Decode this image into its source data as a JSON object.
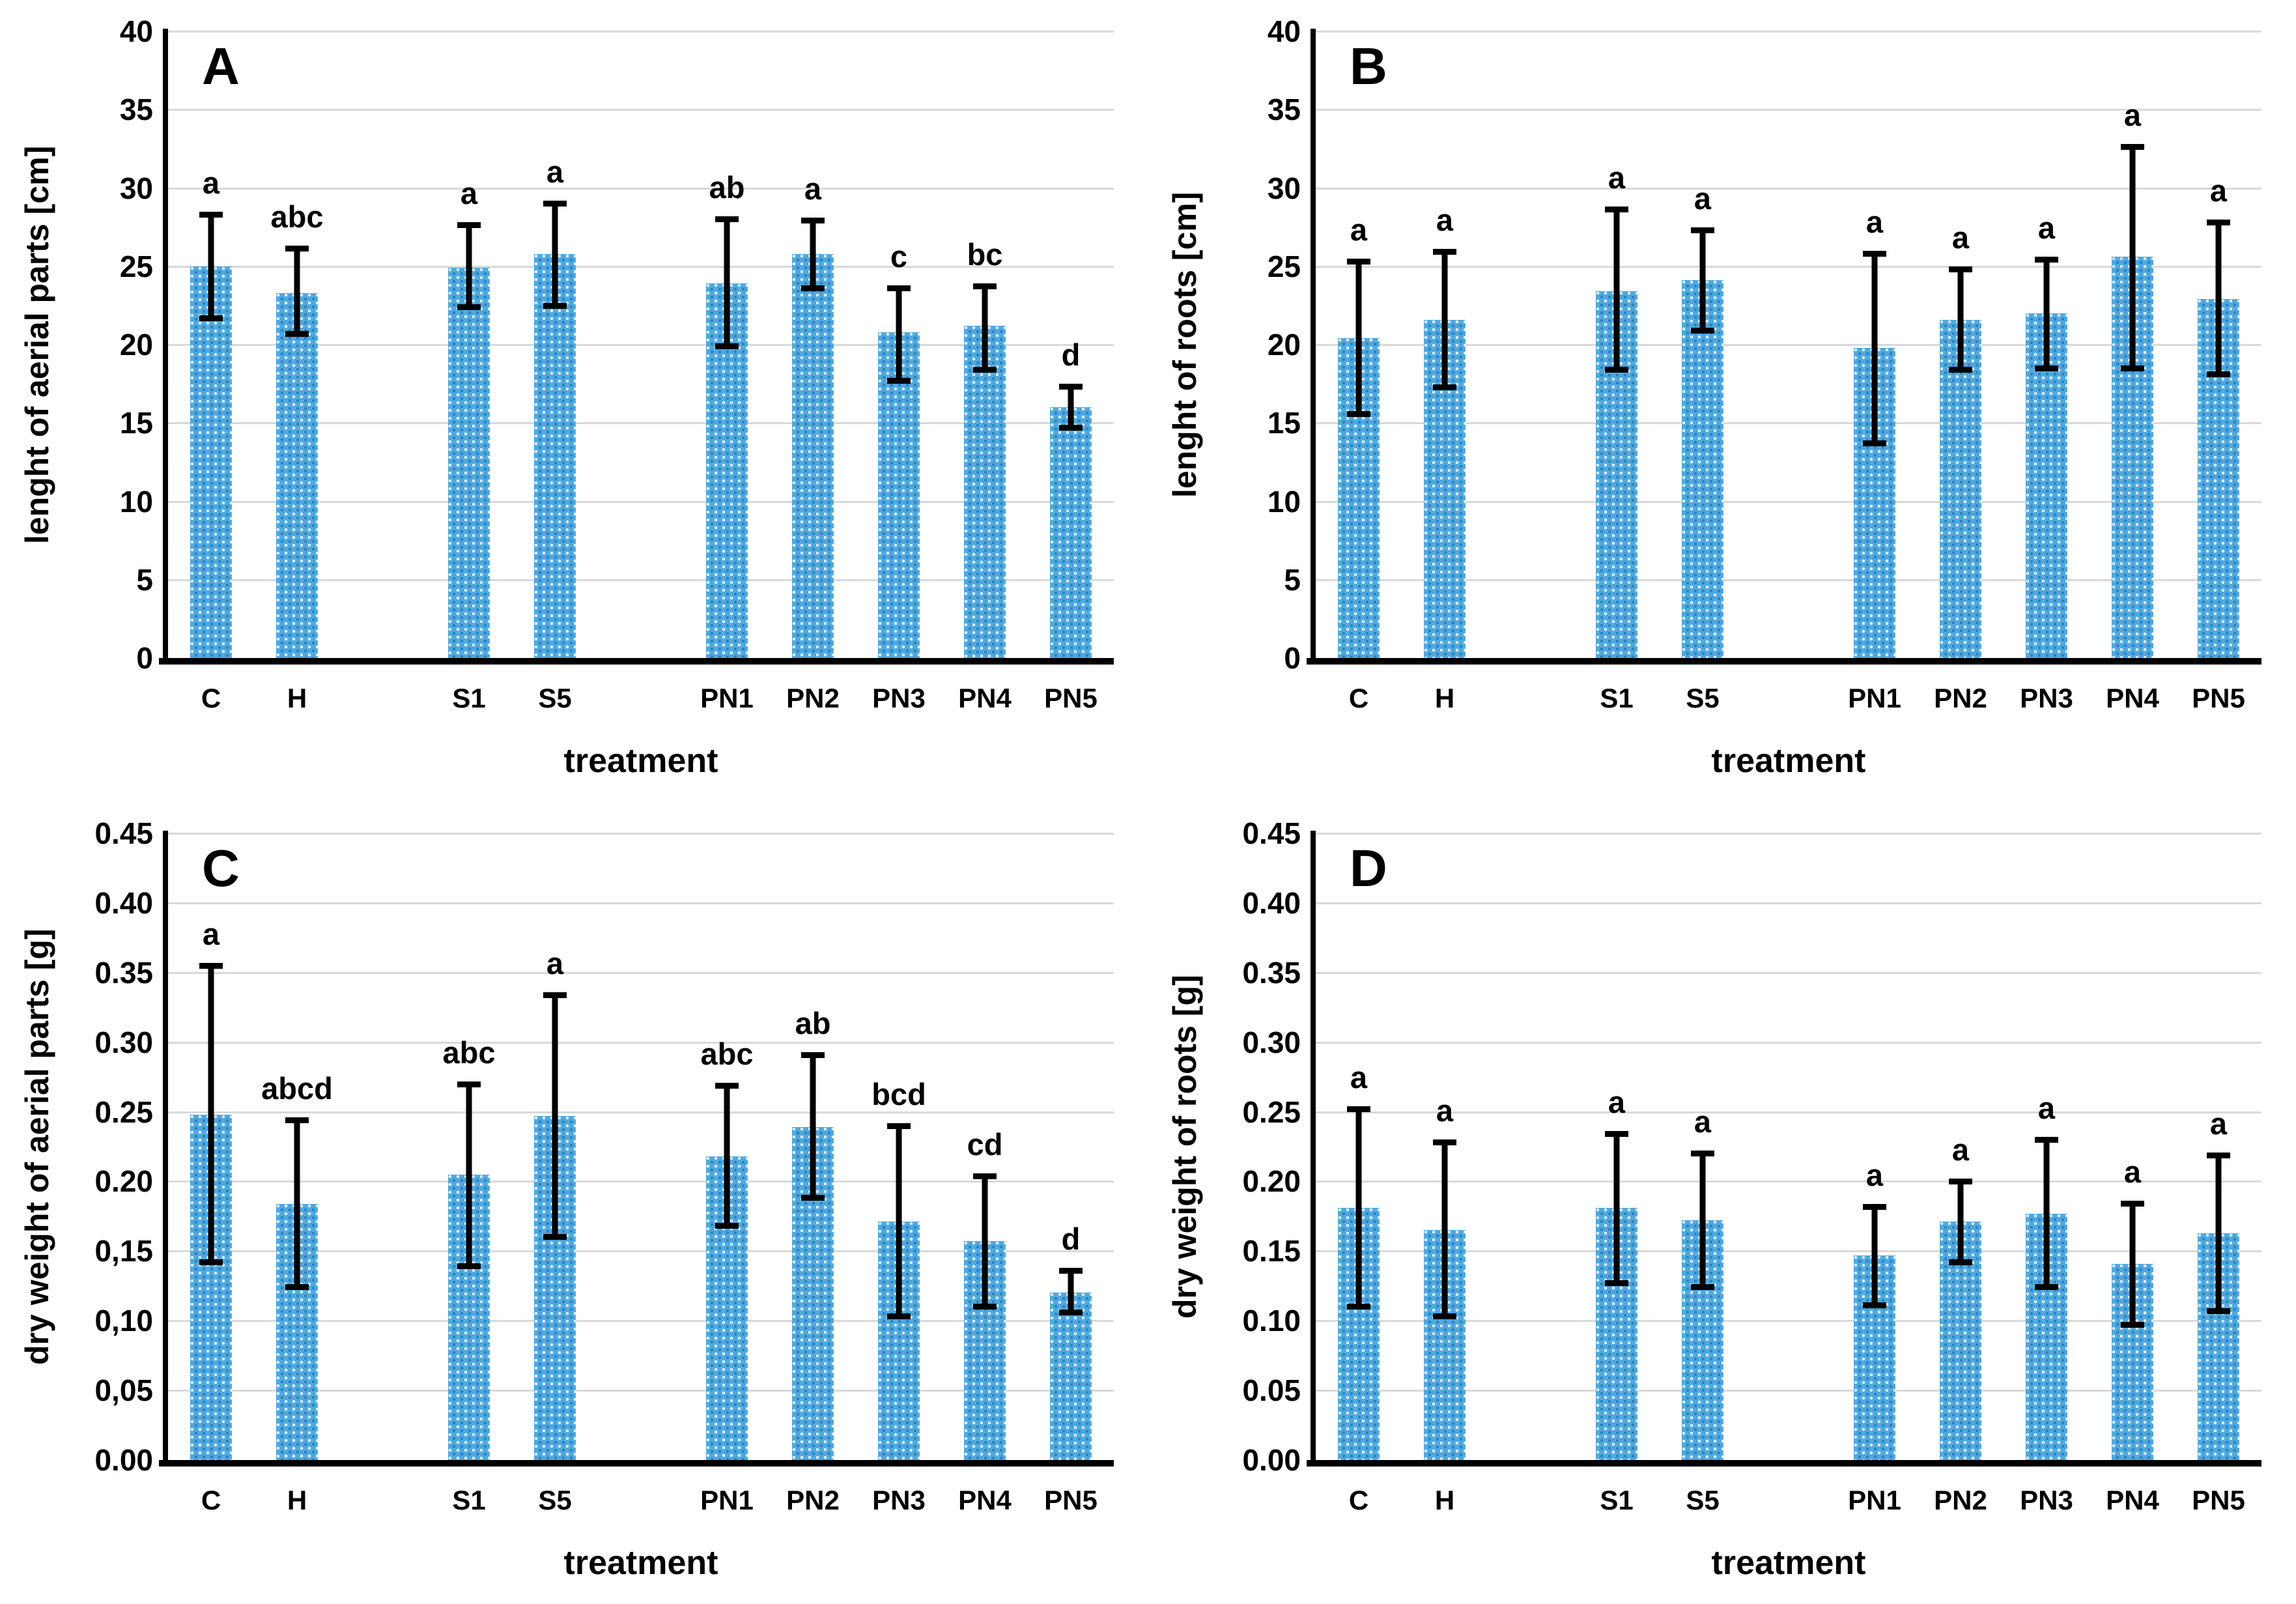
{
  "figure": {
    "background": "#ffffff",
    "description_visible_text_only": true
  },
  "style": {
    "bar_fill_base": "#4fa8de",
    "bar_pattern_light_dot": "#ffffff",
    "bar_pattern_dark_dot": "#0d589b",
    "gridline_color": "#d9d9d9",
    "axis_color": "#000000",
    "error_bar_color": "#000000",
    "text_color": "#000000"
  },
  "layout": {
    "grid": "2x2 panels",
    "num_category_slots": 11,
    "slot_indices": [
      0,
      1,
      3,
      4,
      6,
      7,
      8,
      9,
      10
    ],
    "legend": null
  },
  "chart_data": [
    {
      "type": "bar",
      "panel_letter": "A",
      "ylabel": "lenght of aerial parts [cm]",
      "xlabel": "treatment",
      "ylim": [
        0,
        40
      ],
      "ytick_values": [
        40,
        35,
        30,
        25,
        20,
        15,
        10,
        5,
        0
      ],
      "ytick_labels": [
        "40",
        "35",
        "30",
        "25",
        "20",
        "15",
        "10",
        "5",
        "0"
      ],
      "categories": [
        "C",
        "H",
        "S1",
        "S5",
        "PN1",
        "PN2",
        "PN3",
        "PN4",
        "PN5"
      ],
      "values": [
        25.0,
        23.3,
        24.9,
        25.8,
        23.9,
        25.8,
        20.8,
        21.2,
        16.0
      ],
      "err_low": [
        21.5,
        20.5,
        22.2,
        22.3,
        19.7,
        23.4,
        17.5,
        18.2,
        14.5
      ],
      "err_high": [
        28.5,
        26.3,
        27.8,
        29.2,
        28.2,
        28.1,
        23.8,
        23.9,
        17.5
      ],
      "sig_letters": [
        "a",
        "abc",
        "a",
        "a",
        "ab",
        "a",
        "c",
        "bc",
        "d"
      ],
      "grid": true
    },
    {
      "type": "bar",
      "panel_letter": "B",
      "ylabel": "lenght of roots [cm]",
      "xlabel": "treatment",
      "ylim": [
        0,
        40
      ],
      "ytick_values": [
        40,
        35,
        30,
        25,
        20,
        15,
        10,
        5,
        0
      ],
      "ytick_labels": [
        "40",
        "35",
        "30",
        "25",
        "20",
        "15",
        "10",
        "5",
        "0"
      ],
      "categories": [
        "C",
        "H",
        "S1",
        "S5",
        "PN1",
        "PN2",
        "PN3",
        "PN4",
        "PN5"
      ],
      "values": [
        20.4,
        21.6,
        23.4,
        24.1,
        19.8,
        21.6,
        22.0,
        25.6,
        22.9
      ],
      "err_low": [
        15.4,
        17.1,
        18.2,
        20.7,
        13.5,
        18.2,
        18.3,
        18.3,
        17.9
      ],
      "err_high": [
        25.5,
        26.1,
        28.8,
        27.5,
        26.0,
        25.0,
        25.6,
        32.8,
        28.0
      ],
      "sig_letters": [
        "a",
        "a",
        "a",
        "a",
        "a",
        "a",
        "a",
        "a",
        "a"
      ],
      "grid": true
    },
    {
      "type": "bar",
      "panel_letter": "C",
      "ylabel": "dry weight of aerial parts [g]",
      "xlabel": "treatment",
      "ylim": [
        0,
        0.45
      ],
      "ytick_values": [
        0.45,
        0.4,
        0.35,
        0.3,
        0.25,
        0.2,
        0.15,
        0.1,
        0.05,
        0.0
      ],
      "ytick_labels": [
        "0.45",
        "0.40",
        "0.35",
        "0.30",
        "0.25",
        "0.20",
        "0,15",
        "0,10",
        "0,05",
        "0.00"
      ],
      "categories": [
        "C",
        "H",
        "S1",
        "S5",
        "PN1",
        "PN2",
        "PN3",
        "PN4",
        "PN5"
      ],
      "values": [
        0.248,
        0.184,
        0.205,
        0.247,
        0.218,
        0.239,
        0.171,
        0.157,
        0.12
      ],
      "err_low": [
        0.14,
        0.122,
        0.137,
        0.158,
        0.166,
        0.186,
        0.101,
        0.108,
        0.104
      ],
      "err_high": [
        0.357,
        0.246,
        0.272,
        0.336,
        0.271,
        0.293,
        0.242,
        0.206,
        0.138
      ],
      "sig_letters": [
        "a",
        "abcd",
        "abc",
        "a",
        "abc",
        "ab",
        "bcd",
        "cd",
        "d"
      ],
      "grid": true
    },
    {
      "type": "bar",
      "panel_letter": "D",
      "ylabel": "dry weight of roots [g]",
      "xlabel": "treatment",
      "ylim": [
        0,
        0.45
      ],
      "ytick_values": [
        0.45,
        0.4,
        0.35,
        0.3,
        0.25,
        0.2,
        0.15,
        0.1,
        0.05,
        0.0
      ],
      "ytick_labels": [
        "0.45",
        "0.40",
        "0.35",
        "0.30",
        "0.25",
        "0.20",
        "0.15",
        "0.10",
        "0.05",
        "0.00"
      ],
      "categories": [
        "C",
        "H",
        "S1",
        "S5",
        "PN1",
        "PN2",
        "PN3",
        "PN4",
        "PN5"
      ],
      "values": [
        0.181,
        0.165,
        0.181,
        0.172,
        0.147,
        0.171,
        0.177,
        0.141,
        0.163
      ],
      "err_low": [
        0.108,
        0.101,
        0.125,
        0.122,
        0.109,
        0.14,
        0.122,
        0.095,
        0.105
      ],
      "err_high": [
        0.254,
        0.23,
        0.236,
        0.222,
        0.184,
        0.202,
        0.232,
        0.186,
        0.221
      ],
      "sig_letters": [
        "a",
        "a",
        "a",
        "a",
        "a",
        "a",
        "a",
        "a",
        "a"
      ],
      "grid": true
    }
  ]
}
